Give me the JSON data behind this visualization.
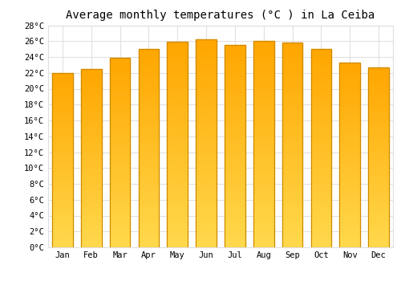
{
  "title": "Average monthly temperatures (°C ) in La Ceiba",
  "months": [
    "Jan",
    "Feb",
    "Mar",
    "Apr",
    "May",
    "Jun",
    "Jul",
    "Aug",
    "Sep",
    "Oct",
    "Nov",
    "Dec"
  ],
  "temperatures": [
    22.0,
    22.5,
    23.9,
    25.0,
    25.9,
    26.2,
    25.5,
    26.0,
    25.8,
    25.0,
    23.3,
    22.7
  ],
  "bar_color_top": "#FFB300",
  "bar_color_bottom": "#FFD966",
  "bar_edge_color": "#CC8800",
  "background_color": "#ffffff",
  "grid_color": "#e0e0e0",
  "ylim": [
    0,
    28
  ],
  "ytick_step": 2,
  "title_fontsize": 10,
  "tick_fontsize": 7.5,
  "font_family": "monospace",
  "bar_width": 0.72
}
